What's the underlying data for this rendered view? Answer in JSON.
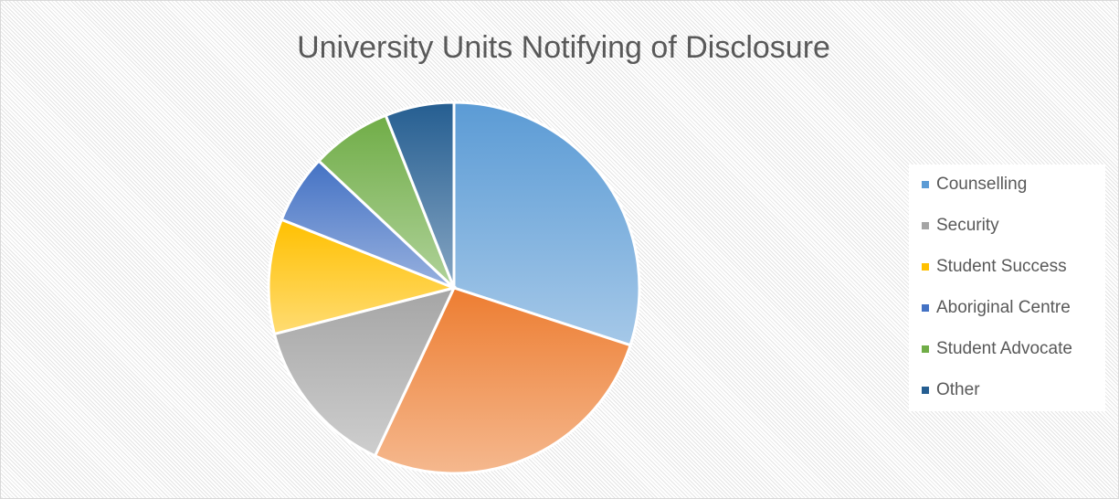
{
  "chart_data": {
    "type": "pie",
    "title": "University Units Notifying of Disclosure",
    "categories": [
      "Counselling",
      null,
      "Security",
      "Student Success",
      "Aboriginal Centre",
      "Student Advocate",
      "Other"
    ],
    "values": [
      30,
      27,
      14,
      10,
      6,
      7,
      6
    ],
    "colors": [
      "#5b9bd5",
      "#ed7d31",
      "#a5a5a5",
      "#ffc000",
      "#4472c4",
      "#70ad47",
      "#255e91"
    ],
    "legend": "right"
  }
}
